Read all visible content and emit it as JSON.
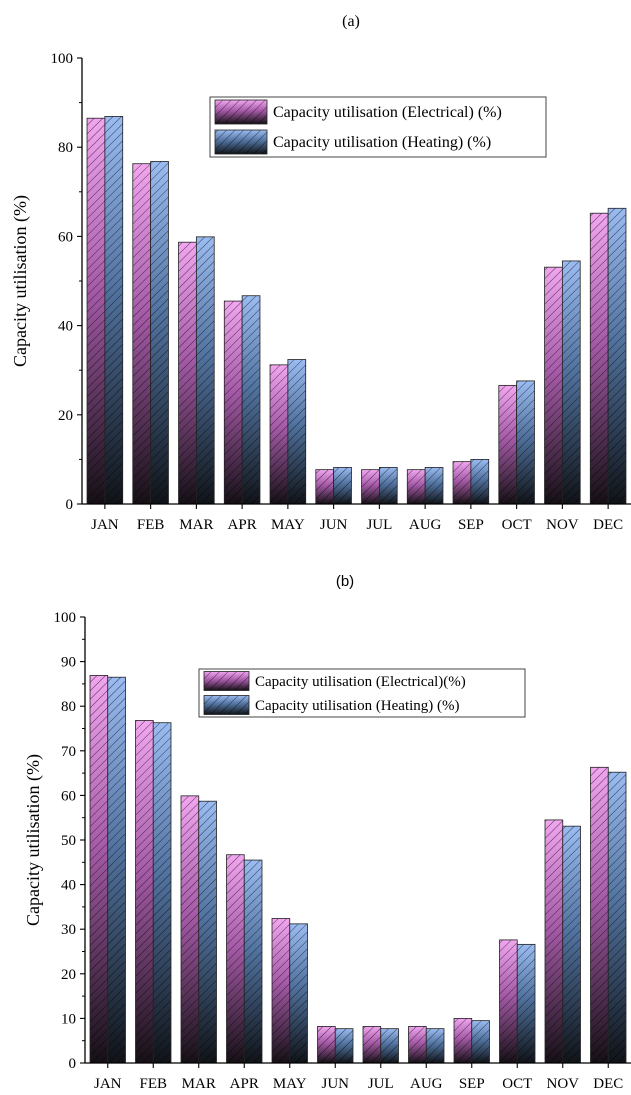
{
  "figure": {
    "panel_a_label": "(a)",
    "panel_b_label": "(b)"
  },
  "colors": {
    "electrical_top": "#f2a6f0",
    "electrical_bottom": "#151015",
    "heating_top": "#9bbcf2",
    "heating_bottom": "#101318",
    "axis": "#000000"
  },
  "chart_data": [
    {
      "type": "bar",
      "panel": "(a)",
      "title": "",
      "xlabel": "",
      "ylabel": "Capacity utilisation (%)",
      "categories": [
        "JAN",
        "FEB",
        "MAR",
        "APR",
        "MAY",
        "JUN",
        "JUL",
        "AUG",
        "SEP",
        "OCT",
        "NOV",
        "DEC"
      ],
      "ylim": [
        0,
        100
      ],
      "yticks": [
        "0",
        "20",
        "40",
        "60",
        "80",
        "100"
      ],
      "grid": false,
      "legend_position": "top-center",
      "series": [
        {
          "name": "Capacity utilisation (Electrical) (%)",
          "values": [
            86.5,
            76.3,
            58.7,
            45.5,
            31.2,
            7.7,
            7.7,
            7.7,
            9.5,
            26.6,
            53.1,
            65.2
          ]
        },
        {
          "name": "Capacity utilisation (Heating)  (%)",
          "values": [
            86.9,
            76.8,
            59.9,
            46.7,
            32.4,
            8.2,
            8.2,
            8.2,
            10.0,
            27.6,
            54.5,
            66.3
          ]
        }
      ]
    },
    {
      "type": "bar",
      "panel": "(b)",
      "title": "",
      "xlabel": "",
      "ylabel": "Capacity utilisation (%)",
      "categories": [
        "JAN",
        "FEB",
        "MAR",
        "APR",
        "MAY",
        "JUN",
        "JUL",
        "AUG",
        "SEP",
        "OCT",
        "NOV",
        "DEC"
      ],
      "ylim": [
        0,
        100
      ],
      "yticks": [
        "0",
        "10",
        "20",
        "30",
        "40",
        "50",
        "60",
        "70",
        "80",
        "90",
        "100"
      ],
      "grid": false,
      "legend_position": "top-center",
      "series": [
        {
          "name": "Capacity utilisation (Electrical)(%)",
          "values": [
            86.9,
            76.8,
            59.9,
            46.7,
            32.4,
            8.2,
            8.2,
            8.2,
            10.0,
            27.6,
            54.5,
            66.3
          ]
        },
        {
          "name": "Capacity utilisation (Heating) (%)",
          "values": [
            86.5,
            76.3,
            58.7,
            45.5,
            31.2,
            7.7,
            7.7,
            7.7,
            9.5,
            26.6,
            53.1,
            65.2
          ]
        }
      ]
    }
  ]
}
